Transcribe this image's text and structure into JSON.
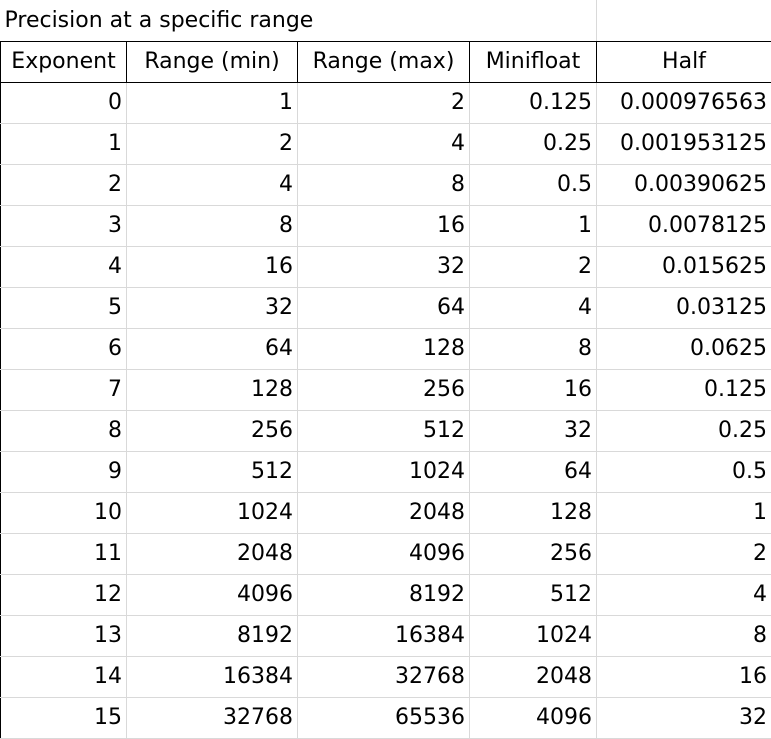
{
  "title": "Precision at a specific range",
  "columns": [
    "Exponent",
    "Range (min)",
    "Range (max)",
    "Minifloat",
    "Half"
  ],
  "rows": [
    [
      "0",
      "1",
      "2",
      "0.125",
      "0.000976563"
    ],
    [
      "1",
      "2",
      "4",
      "0.25",
      "0.001953125"
    ],
    [
      "2",
      "4",
      "8",
      "0.5",
      "0.00390625"
    ],
    [
      "3",
      "8",
      "16",
      "1",
      "0.0078125"
    ],
    [
      "4",
      "16",
      "32",
      "2",
      "0.015625"
    ],
    [
      "5",
      "32",
      "64",
      "4",
      "0.03125"
    ],
    [
      "6",
      "64",
      "128",
      "8",
      "0.0625"
    ],
    [
      "7",
      "128",
      "256",
      "16",
      "0.125"
    ],
    [
      "8",
      "256",
      "512",
      "32",
      "0.25"
    ],
    [
      "9",
      "512",
      "1024",
      "64",
      "0.5"
    ],
    [
      "10",
      "1024",
      "2048",
      "128",
      "1"
    ],
    [
      "11",
      "2048",
      "4096",
      "256",
      "2"
    ],
    [
      "12",
      "4096",
      "8192",
      "512",
      "4"
    ],
    [
      "13",
      "8192",
      "16384",
      "1024",
      "8"
    ],
    [
      "14",
      "16384",
      "32768",
      "2048",
      "16"
    ],
    [
      "15",
      "32768",
      "65536",
      "4096",
      "32"
    ]
  ]
}
